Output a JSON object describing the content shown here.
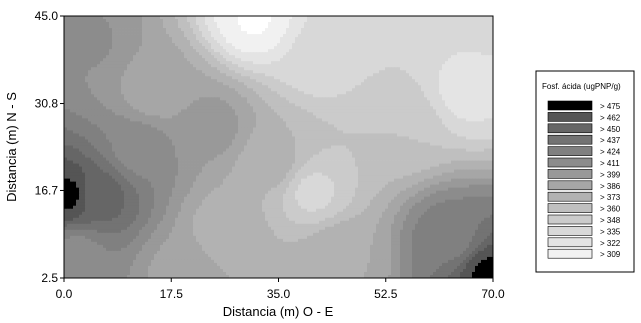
{
  "chart_data": {
    "type": "heatmap",
    "subtype": "filled-contour",
    "xlabel": "Distancia (m) O - E",
    "ylabel": "Distancia (m) N - S",
    "xlim": [
      0.0,
      70.0
    ],
    "ylim": [
      2.5,
      45.0
    ],
    "x_ticks": [
      "0.0",
      "17.5",
      "35.0",
      "52.5",
      "70.0"
    ],
    "x_tick_values": [
      0.0,
      17.5,
      35.0,
      52.5,
      70.0
    ],
    "y_ticks": [
      "2.5",
      "16.7",
      "30.8",
      "45.0"
    ],
    "y_tick_values": [
      2.5,
      16.7,
      30.8,
      45.0
    ],
    "legend": {
      "title": "Fosf. ácida (ugPNP/g)",
      "placement": "right",
      "levels": [
        {
          "label": "> 475",
          "value": 475,
          "color": "#000000"
        },
        {
          "label": "> 462",
          "value": 462,
          "color": "#555555"
        },
        {
          "label": "> 450",
          "value": 450,
          "color": "#666666"
        },
        {
          "label": "> 437",
          "value": 437,
          "color": "#737373"
        },
        {
          "label": "> 424",
          "value": 424,
          "color": "#808080"
        },
        {
          "label": "> 411",
          "value": 411,
          "color": "#8c8c8c"
        },
        {
          "label": "> 399",
          "value": 399,
          "color": "#999999"
        },
        {
          "label": "> 386",
          "value": 386,
          "color": "#a6a6a6"
        },
        {
          "label": "> 373",
          "value": 373,
          "color": "#b2b2b2"
        },
        {
          "label": "> 360",
          "value": 360,
          "color": "#bfbfbf"
        },
        {
          "label": "> 348",
          "value": 348,
          "color": "#cbcbcb"
        },
        {
          "label": "> 335",
          "value": 335,
          "color": "#d8d8d8"
        },
        {
          "label": "> 322",
          "value": 322,
          "color": "#e4e4e4"
        },
        {
          "label": "> 309",
          "value": 309,
          "color": "#f1f1f1"
        }
      ]
    },
    "surface_features": [
      {
        "x": 0.5,
        "y": 16.0,
        "value": 478
      },
      {
        "x": 69.5,
        "y": 3.0,
        "value": 478
      },
      {
        "x": 6.0,
        "y": 16.0,
        "value": 455
      },
      {
        "x": 19.0,
        "y": 3.2,
        "value": 395
      },
      {
        "x": 4.0,
        "y": 41.0,
        "value": 412
      },
      {
        "x": 15.0,
        "y": 33.0,
        "value": 392
      },
      {
        "x": 31.0,
        "y": 44.5,
        "value": 308
      },
      {
        "x": 42.0,
        "y": 39.0,
        "value": 338
      },
      {
        "x": 66.0,
        "y": 33.0,
        "value": 330
      },
      {
        "x": 55.0,
        "y": 27.0,
        "value": 360
      },
      {
        "x": 40.5,
        "y": 16.5,
        "value": 345
      },
      {
        "x": 34.0,
        "y": 21.0,
        "value": 378
      },
      {
        "x": 27.0,
        "y": 10.0,
        "value": 376
      },
      {
        "x": 45.0,
        "y": 6.0,
        "value": 385
      },
      {
        "x": 63.0,
        "y": 9.0,
        "value": 432
      },
      {
        "x": 24.0,
        "y": 27.0,
        "value": 404
      },
      {
        "x": 50.0,
        "y": 45.0,
        "value": 344
      },
      {
        "x": 68.0,
        "y": 44.0,
        "value": 336
      },
      {
        "x": 12.0,
        "y": 23.0,
        "value": 420
      },
      {
        "x": 2.0,
        "y": 6.0,
        "value": 418
      }
    ]
  }
}
